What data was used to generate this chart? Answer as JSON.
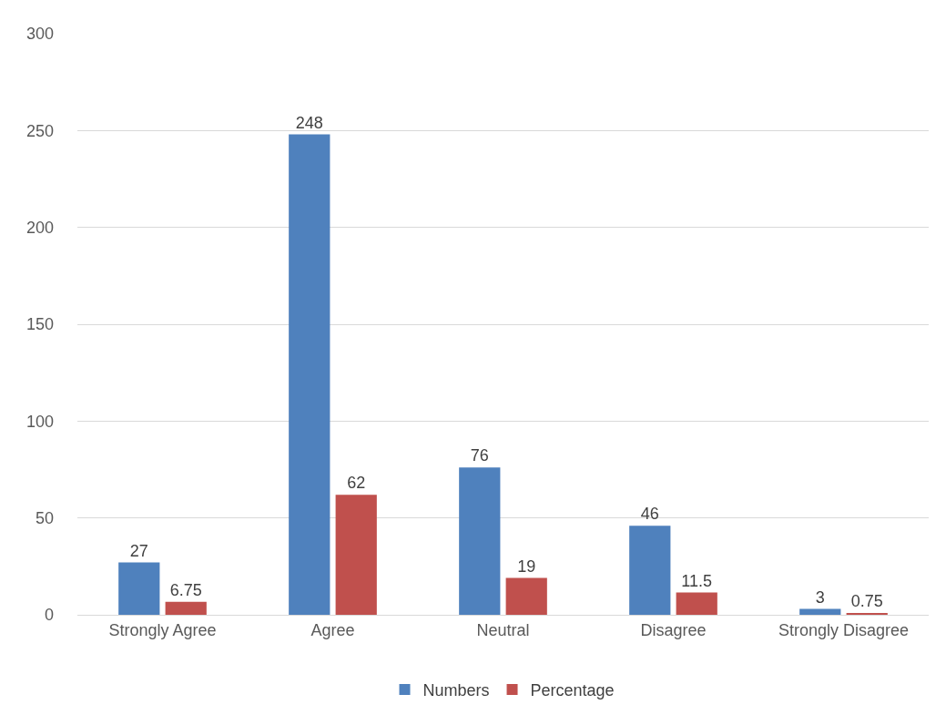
{
  "chart_data": {
    "type": "bar",
    "categories": [
      "Strongly Agree",
      "Agree",
      "Neutral",
      "Disagree",
      "Strongly Disagree"
    ],
    "series": [
      {
        "name": "Numbers",
        "color": "#4f81bd",
        "values": [
          27,
          248,
          76,
          46,
          3
        ]
      },
      {
        "name": "Percentage",
        "color": "#c0504d",
        "values": [
          6.75,
          62,
          19,
          11.5,
          0.75
        ]
      }
    ],
    "ylim": [
      0,
      300
    ],
    "yticks": [
      0,
      50,
      100,
      150,
      200,
      250,
      300
    ],
    "grid": "y",
    "legend": "bottom",
    "data_labels": true
  }
}
